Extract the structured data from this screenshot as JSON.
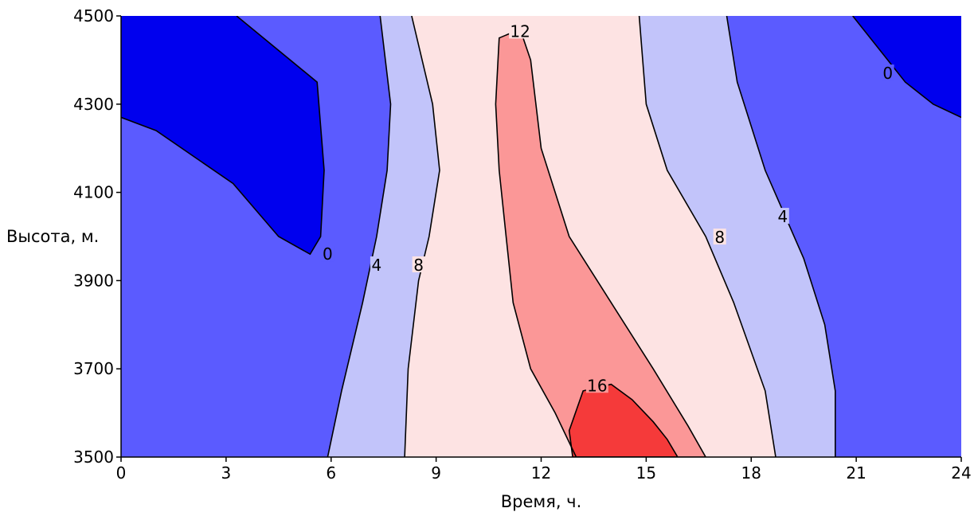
{
  "chart_data": {
    "type": "contour",
    "title": "",
    "xlabel": "Время, ч.",
    "ylabel": "Высота, м.",
    "xlim": [
      0,
      24
    ],
    "ylim": [
      3500,
      4500
    ],
    "x_ticks": [
      "0",
      "3",
      "6",
      "9",
      "12",
      "15",
      "18",
      "21",
      "24"
    ],
    "y_ticks": [
      "3500",
      "3700",
      "3900",
      "4100",
      "4300",
      "4500"
    ],
    "grid": false,
    "levels": [
      0,
      4,
      8,
      12,
      16
    ],
    "level_labels": [
      "0",
      "4",
      "8",
      "12",
      "16"
    ],
    "level_colors": {
      "below_0": "#0000ee",
      "0_to_4": "#5b5bff",
      "4_to_8": "#c2c4fa",
      "8_to_12": "#fde3e3",
      "12_to_16": "#fb9797",
      "above_16": "#f53a3a"
    },
    "contours": [
      {
        "level": "0",
        "label": "0",
        "points": [
          [
            3.3,
            4500
          ],
          [
            5.6,
            4350
          ],
          [
            5.8,
            4150
          ],
          [
            5.7,
            4000
          ],
          [
            5.4,
            3960
          ],
          [
            4.5,
            4000
          ],
          [
            3.2,
            4120
          ],
          [
            1.0,
            4240
          ],
          [
            0,
            4270
          ]
        ]
      },
      {
        "level": "0",
        "label": "0",
        "points": [
          [
            20.9,
            4500
          ],
          [
            21.7,
            4420
          ],
          [
            22.4,
            4350
          ],
          [
            23.2,
            4300
          ],
          [
            24,
            4270
          ]
        ]
      },
      {
        "level": "4",
        "label": "4",
        "points": [
          [
            7.4,
            4500
          ],
          [
            7.7,
            4300
          ],
          [
            7.6,
            4150
          ],
          [
            7.3,
            4000
          ],
          [
            6.9,
            3850
          ],
          [
            6.3,
            3650
          ],
          [
            5.9,
            3500
          ]
        ]
      },
      {
        "level": "8",
        "label": "8",
        "points": [
          [
            8.3,
            4500
          ],
          [
            8.9,
            4300
          ],
          [
            9.1,
            4150
          ],
          [
            8.8,
            4000
          ],
          [
            8.5,
            3900
          ],
          [
            8.2,
            3700
          ],
          [
            8.1,
            3500
          ]
        ]
      },
      {
        "level": "8",
        "label": "8",
        "points": [
          [
            14.8,
            4500
          ],
          [
            15.0,
            4300
          ],
          [
            15.6,
            4150
          ],
          [
            16.7,
            4000
          ],
          [
            17.5,
            3850
          ],
          [
            18.4,
            3650
          ],
          [
            18.7,
            3500
          ]
        ]
      },
      {
        "level": "4",
        "label": "4",
        "points": [
          [
            17.3,
            4500
          ],
          [
            17.6,
            4350
          ],
          [
            18.4,
            4150
          ],
          [
            19.5,
            3950
          ],
          [
            20.1,
            3800
          ],
          [
            20.4,
            3650
          ],
          [
            20.4,
            3500
          ]
        ]
      },
      {
        "level": "12",
        "label": "12",
        "points": [
          [
            10.8,
            4450
          ],
          [
            11.4,
            4470
          ],
          [
            11.7,
            4400
          ],
          [
            12.0,
            4200
          ],
          [
            12.8,
            4000
          ],
          [
            14.0,
            3850
          ],
          [
            15.2,
            3700
          ],
          [
            16.2,
            3570
          ],
          [
            16.7,
            3500
          ],
          [
            13.0,
            3500
          ],
          [
            12.4,
            3600
          ],
          [
            11.7,
            3700
          ],
          [
            11.2,
            3850
          ],
          [
            11.0,
            4000
          ],
          [
            10.8,
            4150
          ],
          [
            10.7,
            4300
          ],
          [
            10.8,
            4450
          ]
        ]
      },
      {
        "level": "16",
        "label": "16",
        "points": [
          [
            13.2,
            3650
          ],
          [
            14.0,
            3665
          ],
          [
            14.6,
            3630
          ],
          [
            15.2,
            3580
          ],
          [
            15.6,
            3540
          ],
          [
            15.9,
            3500
          ],
          [
            12.9,
            3500
          ],
          [
            12.8,
            3560
          ],
          [
            13.2,
            3650
          ]
        ]
      }
    ],
    "contour_label_positions": [
      {
        "text": "0",
        "x": 5.9,
        "y": 3960
      },
      {
        "text": "4",
        "x": 7.3,
        "y": 3935
      },
      {
        "text": "8",
        "x": 8.5,
        "y": 3935
      },
      {
        "text": "12",
        "x": 11.4,
        "y": 4465
      },
      {
        "text": "16",
        "x": 13.6,
        "y": 3662
      },
      {
        "text": "8",
        "x": 17.1,
        "y": 3998
      },
      {
        "text": "4",
        "x": 18.9,
        "y": 4045
      },
      {
        "text": "0",
        "x": 21.9,
        "y": 4370
      }
    ]
  }
}
